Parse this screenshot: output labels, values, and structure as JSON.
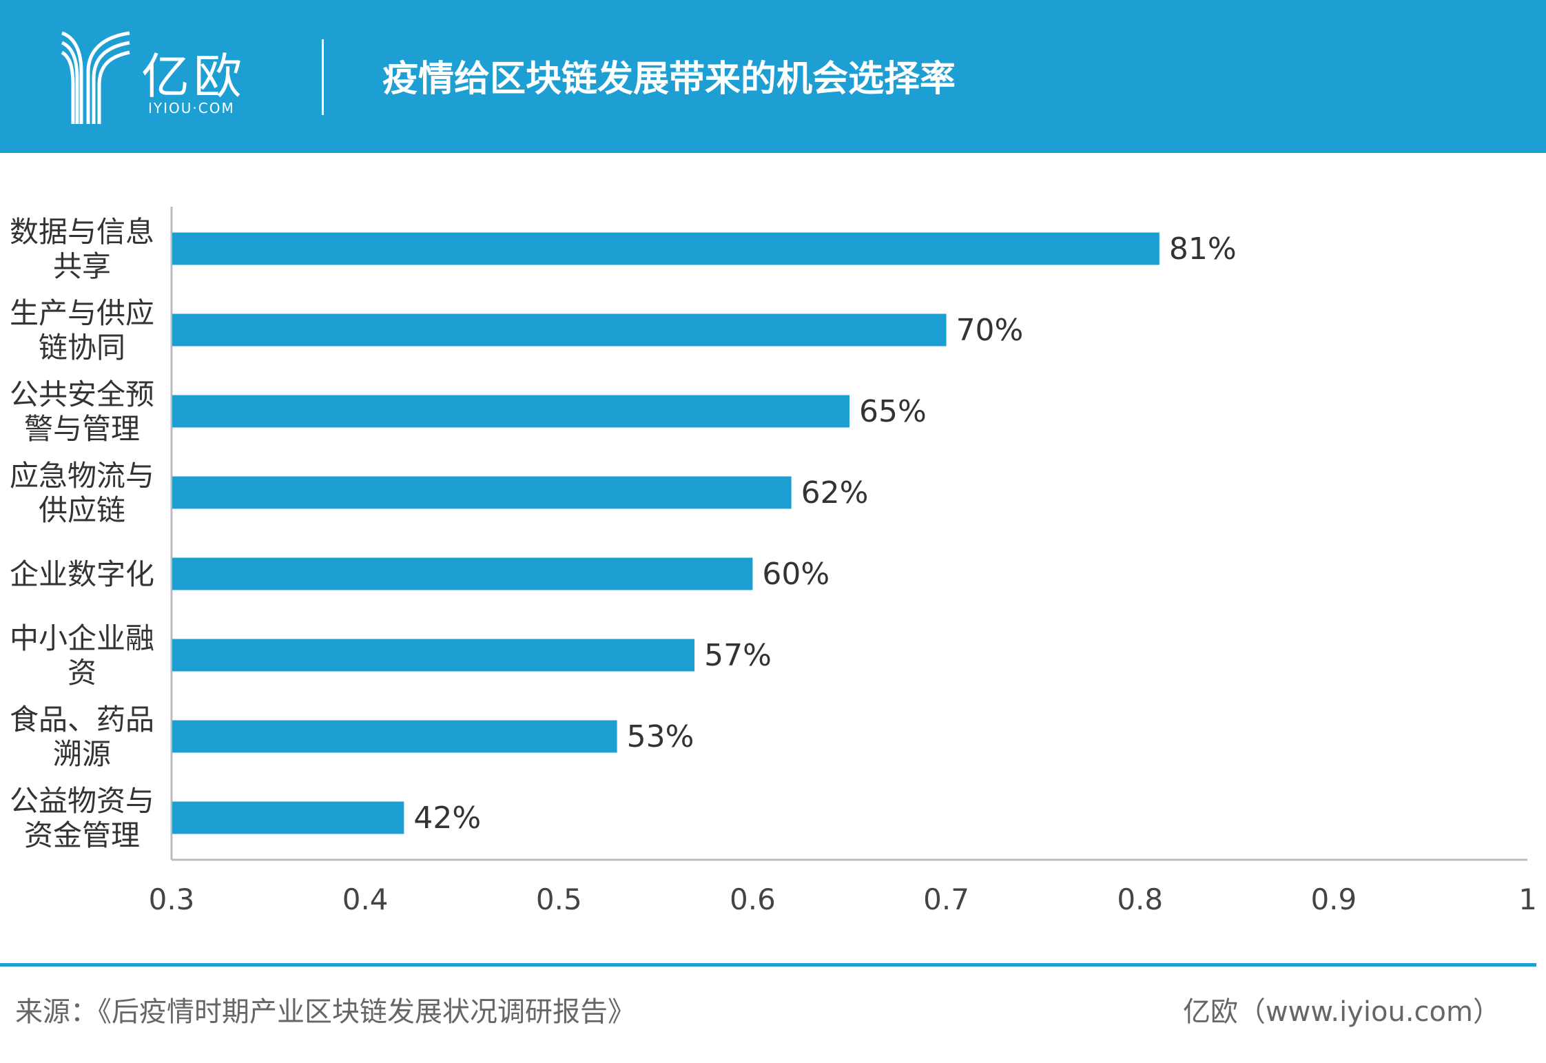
{
  "header": {
    "logo_text": "亿欧",
    "logo_subtext": "IYIOU·COM",
    "title": "疫情给区块链发展带来的机会选择率"
  },
  "colors": {
    "header": "#1e9fd4",
    "bar": "#1e9fd4"
  },
  "chart_data": {
    "type": "bar",
    "orientation": "horizontal",
    "categories": [
      [
        "数据与信息",
        "共享"
      ],
      [
        "生产与供应",
        "链协同"
      ],
      [
        "公共安全预",
        "警与管理"
      ],
      [
        "应急物流与",
        "供应链"
      ],
      [
        "企业数字化"
      ],
      [
        "中小企业融",
        "资"
      ],
      [
        "食品、药品",
        "溯源"
      ],
      [
        "公益物资与",
        "资金管理"
      ]
    ],
    "values": [
      0.81,
      0.7,
      0.65,
      0.62,
      0.6,
      0.57,
      0.53,
      0.42
    ],
    "data_labels": [
      "81%",
      "70%",
      "65%",
      "62%",
      "60%",
      "57%",
      "53%",
      "42%"
    ],
    "xlim": [
      0.3,
      1
    ],
    "xticks": [
      "0.3",
      "0.4",
      "0.5",
      "0.6",
      "0.7",
      "0.8",
      "0.9",
      "1"
    ],
    "grid": false,
    "legend": "none"
  },
  "footer": {
    "source": "来源：《后疫情时期产业区块链发展状况调研报告》",
    "credit": "亿欧（www.iyiou.com）"
  }
}
